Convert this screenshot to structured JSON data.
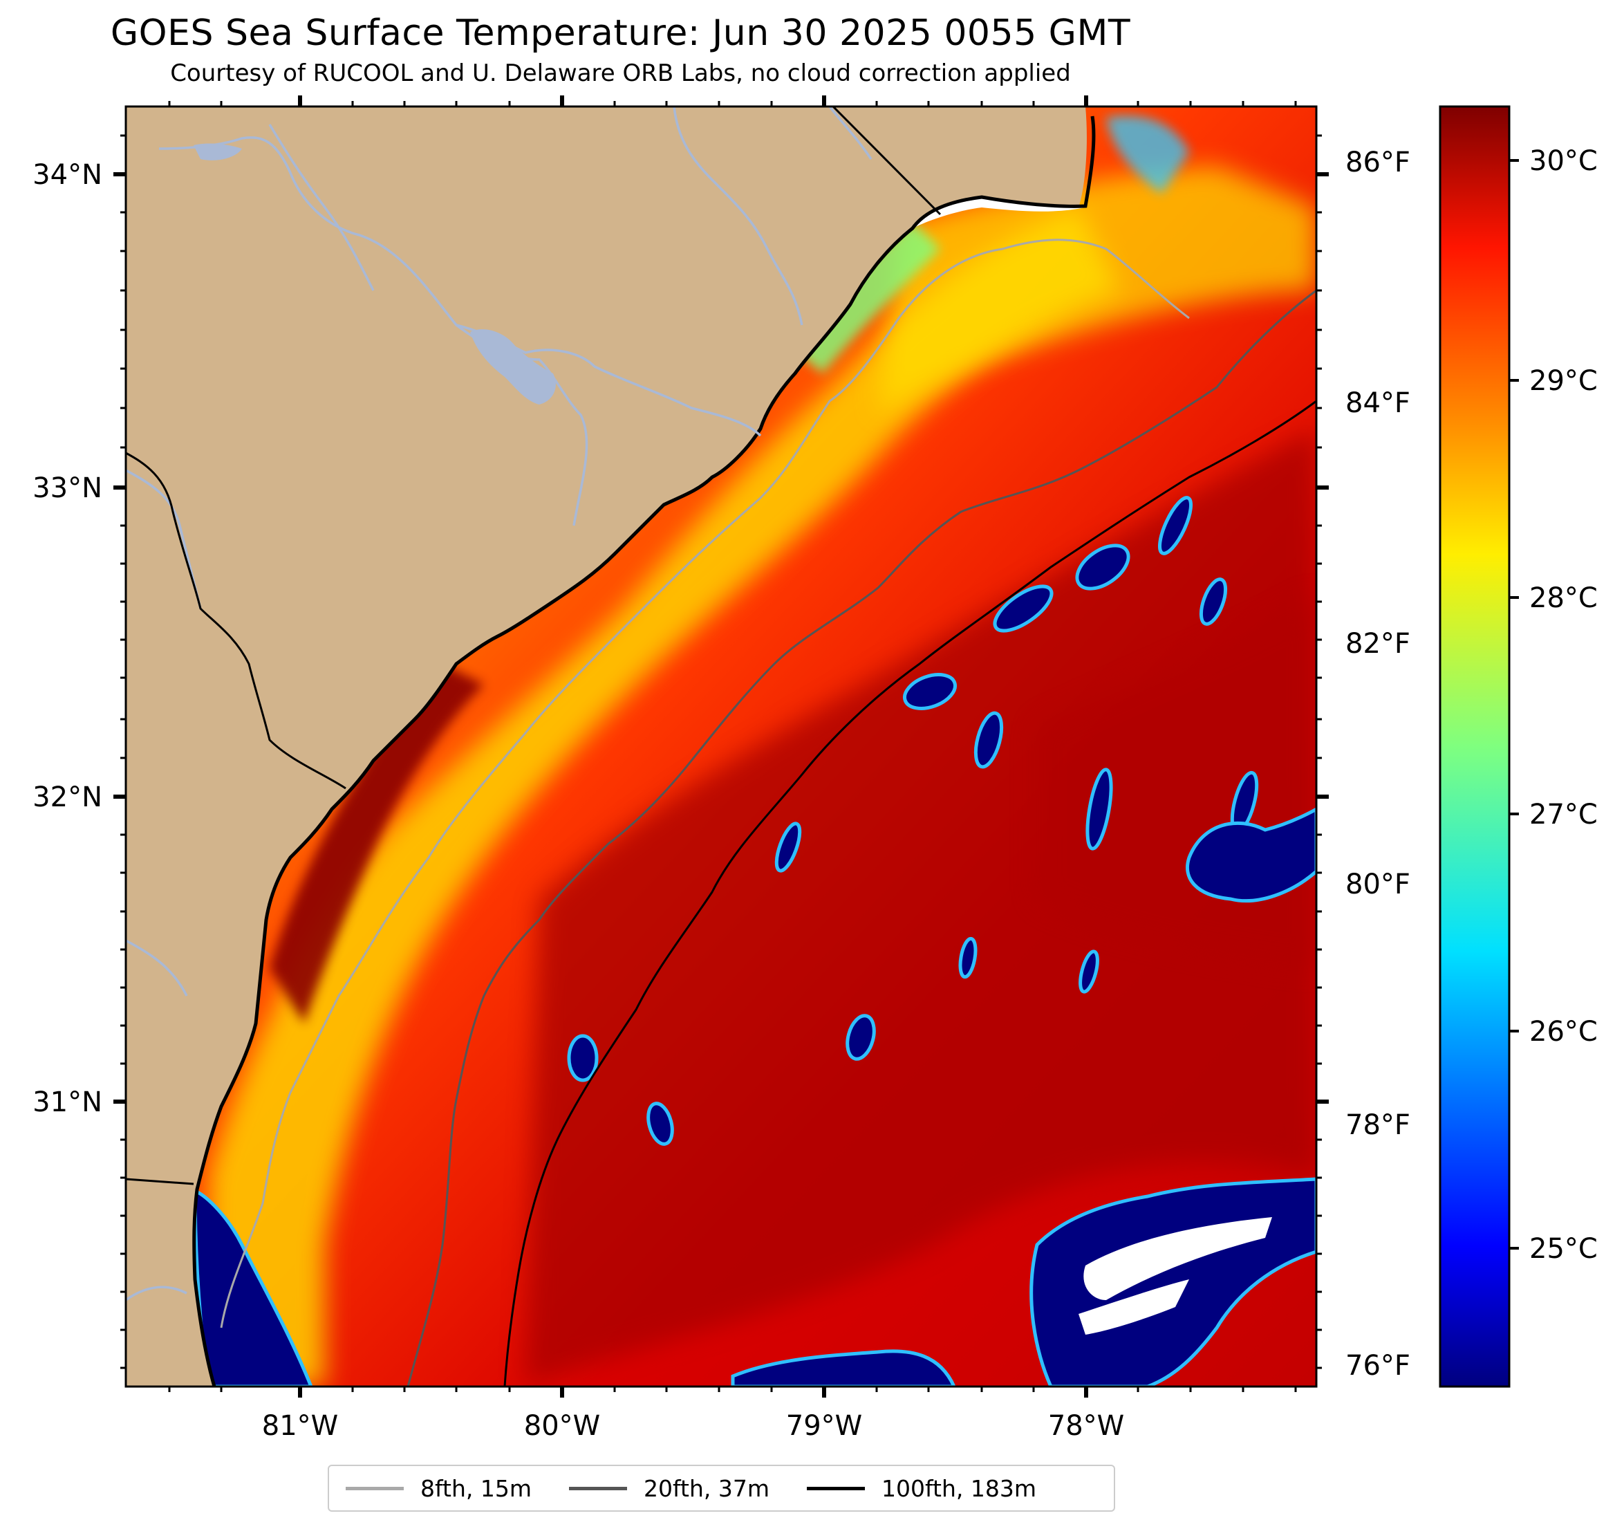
{
  "title": "GOES Sea Surface Temperature: Jun 30 2025 0055 GMT",
  "subtitle": "Courtesy of RUCOOL and U. Delaware ORB Labs, no cloud correction applied",
  "map": {
    "lon_range": [
      -81.67,
      -77.12
    ],
    "lat_range": [
      30.08,
      34.22
    ],
    "lon_ticks": [
      "81°W",
      "80°W",
      "79°W",
      "78°W"
    ],
    "lat_ticks": [
      "34°N",
      "33°N",
      "32°N",
      "31°N"
    ],
    "land_color": "#d2b48c",
    "river_color": "#a9b9d6"
  },
  "fahrenheit_axis": {
    "labels": [
      "86°F",
      "84°F",
      "82°F",
      "80°F",
      "78°F",
      "76°F"
    ],
    "values": [
      86,
      84,
      82,
      80,
      78,
      76
    ]
  },
  "colorbar": {
    "colormap": "jet",
    "labels": [
      "30°C",
      "29°C",
      "28°C",
      "27°C",
      "26°C",
      "25°C"
    ],
    "values": [
      30,
      29,
      28,
      27,
      26,
      25
    ],
    "range": [
      24.4,
      30.2
    ]
  },
  "legend": [
    {
      "label": "8fth, 15m",
      "color": "#a9a9a9"
    },
    {
      "label": "20fth, 37m",
      "color": "#555555"
    },
    {
      "label": "100fth, 183m",
      "color": "#000000"
    }
  ]
}
